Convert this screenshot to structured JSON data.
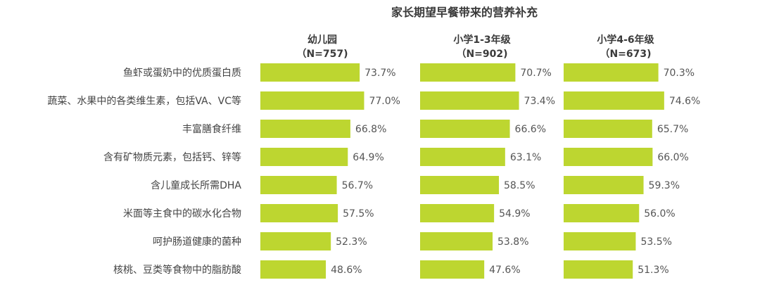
{
  "chart_data": {
    "type": "bar",
    "title": "家长期望早餐带来的营养补充",
    "categories": [
      "鱼虾或蛋奶中的优质蛋白质",
      "蔬菜、水果中的各类维生素，包括VA、VC等",
      "丰富膳食纤维",
      "含有矿物质元素，包括钙、锌等",
      "含儿童成长所需DHA",
      "米面等主食中的碳水化合物",
      "呵护肠道健康的菌种",
      "核桃、豆类等食物中的脂肪酸"
    ],
    "series": [
      {
        "name": "幼儿园",
        "sample": "（N=757)",
        "values": [
          73.7,
          77.0,
          66.8,
          64.9,
          56.7,
          57.5,
          52.3,
          48.6
        ],
        "labels": [
          "73.7%",
          "77.0%",
          "66.8%",
          "64.9%",
          "56.7%",
          "57.5%",
          "52.3%",
          "48.6%"
        ]
      },
      {
        "name": "小学1-3年级",
        "sample": "（N=902)",
        "values": [
          70.7,
          73.4,
          66.6,
          63.1,
          58.5,
          54.9,
          53.8,
          47.6
        ],
        "labels": [
          "70.7%",
          "73.4%",
          "66.6%",
          "63.1%",
          "58.5%",
          "54.9%",
          "53.8%",
          "47.6%"
        ]
      },
      {
        "name": "小学4-6年级",
        "sample": "（N=673)",
        "values": [
          70.3,
          74.6,
          65.7,
          66.0,
          59.3,
          56.0,
          53.5,
          51.3
        ],
        "labels": [
          "70.3%",
          "74.6%",
          "65.7%",
          "66.0%",
          "59.3%",
          "56.0%",
          "53.5%",
          "51.3%"
        ]
      }
    ],
    "unit": "%",
    "orientation": "horizontal",
    "layout": "small-multiples",
    "bar_color": "#bdd630",
    "grid": false,
    "legend": "none"
  }
}
